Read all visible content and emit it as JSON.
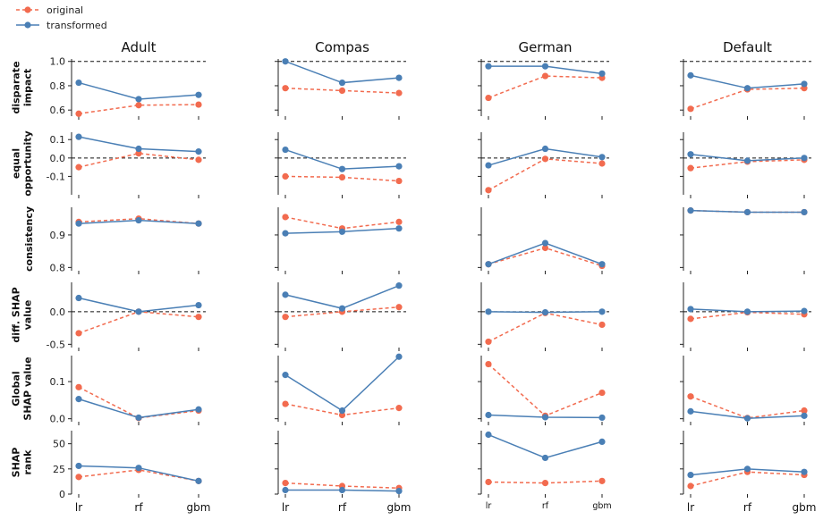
{
  "legend": [
    {
      "key": "original",
      "label": "original",
      "color": "#f26b4f",
      "dash": "4,3"
    },
    {
      "key": "transformed",
      "label": "transformed",
      "color": "#4a7fb5",
      "dash": ""
    }
  ],
  "chart_data": {
    "type": "line",
    "x_categories": [
      "lr",
      "rf",
      "gbm"
    ],
    "datasets": [
      "Adult",
      "Compas",
      "German",
      "Default"
    ],
    "metrics": [
      {
        "label": [
          "disparate",
          "impact"
        ],
        "ylim": [
          0.55,
          1.02
        ],
        "yticks": [
          "1.0",
          "0.8",
          "0.6"
        ],
        "ytick_values": [
          1.0,
          0.8,
          0.6
        ],
        "reference_line": 1.0,
        "values": {
          "Adult": {
            "original": [
              0.57,
              0.64,
              0.645
            ],
            "transformed": [
              0.825,
              0.69,
              0.725
            ]
          },
          "Compas": {
            "original": [
              0.78,
              0.76,
              0.74
            ],
            "transformed": [
              1.0,
              0.825,
              0.865
            ]
          },
          "German": {
            "original": [
              0.7,
              0.88,
              0.865
            ],
            "transformed": [
              0.96,
              0.96,
              0.9
            ]
          },
          "Default": {
            "original": [
              0.61,
              0.77,
              0.78
            ],
            "transformed": [
              0.885,
              0.78,
              0.815
            ]
          }
        }
      },
      {
        "label": [
          "equal",
          "opportunity"
        ],
        "ylim": [
          -0.2,
          0.14
        ],
        "yticks": [
          "0.1",
          "0.0",
          "-0.1"
        ],
        "ytick_values": [
          0.1,
          0.0,
          -0.1
        ],
        "reference_line": 0.0,
        "values": {
          "Adult": {
            "original": [
              -0.05,
              0.025,
              -0.01
            ],
            "transformed": [
              0.115,
              0.05,
              0.035
            ]
          },
          "Compas": {
            "original": [
              -0.1,
              -0.105,
              -0.125
            ],
            "transformed": [
              0.045,
              -0.06,
              -0.045
            ]
          },
          "German": {
            "original": [
              -0.175,
              -0.005,
              -0.03
            ],
            "transformed": [
              -0.04,
              0.05,
              0.005
            ]
          },
          "Default": {
            "original": [
              -0.055,
              -0.02,
              -0.01
            ],
            "transformed": [
              0.02,
              -0.015,
              0.0
            ]
          }
        }
      },
      {
        "label": [
          "consistency"
        ],
        "ylim": [
          0.79,
          0.985
        ],
        "yticks": [
          "0.9",
          "0.8"
        ],
        "ytick_values": [
          0.9,
          0.8
        ],
        "reference_line": null,
        "values": {
          "Adult": {
            "original": [
              0.94,
              0.95,
              0.935
            ],
            "transformed": [
              0.935,
              0.945,
              0.935
            ]
          },
          "Compas": {
            "original": [
              0.955,
              0.92,
              0.94
            ],
            "transformed": [
              0.905,
              0.91,
              0.92
            ]
          },
          "German": {
            "original": [
              0.81,
              0.86,
              0.805
            ],
            "transformed": [
              0.81,
              0.875,
              0.81
            ]
          },
          "Default": {
            "original": [
              0.975,
              0.97,
              0.97
            ],
            "transformed": [
              0.975,
              0.97,
              0.97
            ]
          }
        }
      },
      {
        "label": [
          "diff. SHAP",
          "value"
        ],
        "ylim": [
          -0.55,
          0.45
        ],
        "yticks": [
          "0.0",
          "-0.5"
        ],
        "ytick_values": [
          0.0,
          -0.5
        ],
        "reference_line": 0.0,
        "values": {
          "Adult": {
            "original": [
              -0.33,
              0.0,
              -0.08
            ],
            "transformed": [
              0.21,
              0.0,
              0.1
            ]
          },
          "Compas": {
            "original": [
              -0.08,
              0.0,
              0.07
            ],
            "transformed": [
              0.26,
              0.05,
              0.4
            ]
          },
          "German": {
            "original": [
              -0.46,
              -0.02,
              -0.2
            ],
            "transformed": [
              0.0,
              -0.01,
              0.0
            ]
          },
          "Default": {
            "original": [
              -0.11,
              -0.01,
              -0.04
            ],
            "transformed": [
              0.04,
              0.0,
              0.01
            ]
          }
        }
      },
      {
        "label": [
          "Global",
          "SHAP value"
        ],
        "ylim": [
          -0.008,
          0.17
        ],
        "yticks": [
          "0.1",
          "0.0"
        ],
        "ytick_values": [
          0.1,
          0.0
        ],
        "reference_line": null,
        "values": {
          "Adult": {
            "original": [
              0.085,
              0.002,
              0.022
            ],
            "transformed": [
              0.053,
              0.003,
              0.025
            ]
          },
          "Compas": {
            "original": [
              0.04,
              0.01,
              0.029
            ],
            "transformed": [
              0.118,
              0.022,
              0.167
            ]
          },
          "German": {
            "original": [
              0.147,
              0.008,
              0.07
            ],
            "transformed": [
              0.01,
              0.004,
              0.003
            ]
          },
          "Default": {
            "original": [
              0.06,
              0.002,
              0.022
            ],
            "transformed": [
              0.02,
              0.001,
              0.008
            ]
          }
        }
      },
      {
        "label": [
          "SHAP",
          "rank"
        ],
        "ylim": [
          0,
          63
        ],
        "yticks": [
          "50",
          "25",
          "0"
        ],
        "ytick_values": [
          50,
          25,
          0
        ],
        "reference_line": null,
        "values": {
          "Adult": {
            "original": [
              17,
              24,
              13
            ],
            "transformed": [
              28,
              26,
              13
            ]
          },
          "Compas": {
            "original": [
              11,
              8,
              6
            ],
            "transformed": [
              4,
              4,
              3
            ]
          },
          "German": {
            "original": [
              12,
              11,
              13
            ],
            "transformed": [
              59,
              36,
              52
            ]
          },
          "Default": {
            "original": [
              8,
              22,
              19
            ],
            "transformed": [
              19,
              25,
              22
            ]
          }
        }
      }
    ]
  }
}
